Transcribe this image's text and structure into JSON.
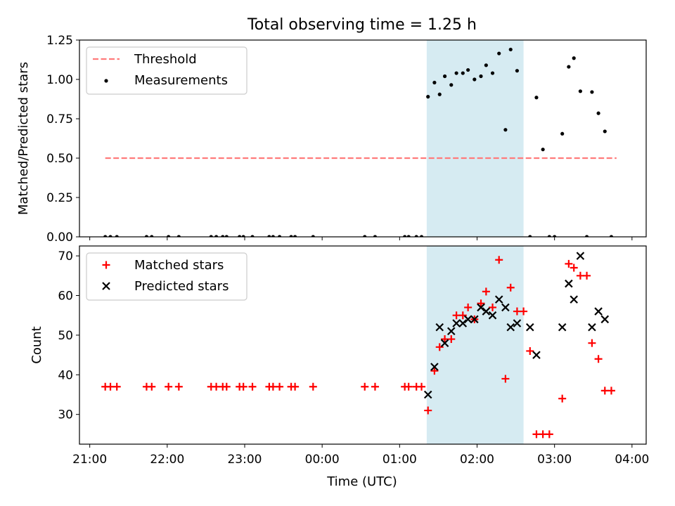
{
  "figure": {
    "title": "Total observing time = 1.25 h"
  },
  "colors": {
    "threshold": "#ff7b7b",
    "measurement": "#000000",
    "matched": "#ff0000",
    "predicted": "#000000",
    "observing_window": "#add8e6"
  },
  "chart_data": [
    {
      "type": "scatter",
      "title": "Total observing time = 1.25 h",
      "xlabel": "",
      "ylabel": "Matched/Predicted stars",
      "ylim": [
        0,
        1.25
      ],
      "yticks": [
        "0.00",
        "0.25",
        "0.50",
        "0.75",
        "1.00",
        "1.25"
      ],
      "xticks": [
        "21:00",
        "22:00",
        "23:00",
        "00:00",
        "01:00",
        "02:00",
        "03:00",
        "04:00"
      ],
      "shaded_interval": [
        "01:21",
        "02:36"
      ],
      "legend_position": "upper-left",
      "series": [
        {
          "name": "Threshold",
          "style": "dashed-line",
          "points": [
            [
              "21:12",
              0.5
            ],
            [
              "03:48",
              0.5
            ]
          ]
        },
        {
          "name": "Measurements",
          "style": "dots",
          "points": [
            [
              "21:12",
              0.0
            ],
            [
              "21:16",
              0.0
            ],
            [
              "21:21",
              0.0
            ],
            [
              "21:44",
              0.0
            ],
            [
              "21:48",
              0.0
            ],
            [
              "22:01",
              0.0
            ],
            [
              "22:09",
              0.0
            ],
            [
              "22:34",
              0.0
            ],
            [
              "22:38",
              0.0
            ],
            [
              "22:43",
              0.0
            ],
            [
              "22:46",
              0.0
            ],
            [
              "22:56",
              0.0
            ],
            [
              "22:59",
              0.0
            ],
            [
              "23:06",
              0.0
            ],
            [
              "23:19",
              0.0
            ],
            [
              "23:22",
              0.0
            ],
            [
              "23:27",
              0.0
            ],
            [
              "23:36",
              0.0
            ],
            [
              "23:39",
              0.0
            ],
            [
              "23:53",
              0.0
            ],
            [
              "00:33",
              0.0
            ],
            [
              "00:41",
              0.0
            ],
            [
              "01:04",
              0.0
            ],
            [
              "01:07",
              0.0
            ],
            [
              "01:13",
              0.0
            ],
            [
              "01:17",
              0.0
            ],
            [
              "01:22",
              0.89
            ],
            [
              "01:27",
              0.98
            ],
            [
              "01:31",
              0.905
            ],
            [
              "01:35",
              1.02
            ],
            [
              "01:40",
              0.965
            ],
            [
              "01:44",
              1.04
            ],
            [
              "01:49",
              1.04
            ],
            [
              "01:53",
              1.06
            ],
            [
              "01:58",
              1.0
            ],
            [
              "02:03",
              1.02
            ],
            [
              "02:07",
              1.09
            ],
            [
              "02:12",
              1.04
            ],
            [
              "02:17",
              1.165
            ],
            [
              "02:22",
              0.68
            ],
            [
              "02:26",
              1.19
            ],
            [
              "02:31",
              1.055
            ],
            [
              "02:41",
              0.0
            ],
            [
              "02:46",
              0.885
            ],
            [
              "02:51",
              0.555
            ],
            [
              "02:56",
              0.0
            ],
            [
              "03:00",
              0.0
            ],
            [
              "03:06",
              0.655
            ],
            [
              "03:11",
              1.08
            ],
            [
              "03:15",
              1.135
            ],
            [
              "03:20",
              0.925
            ],
            [
              "03:25",
              0.0
            ],
            [
              "03:29",
              0.92
            ],
            [
              "03:34",
              0.785
            ],
            [
              "03:39",
              0.67
            ],
            [
              "03:44",
              0.0
            ]
          ]
        }
      ]
    },
    {
      "type": "scatter",
      "title": "",
      "xlabel": "Time (UTC)",
      "ylabel": "Count",
      "ylim": [
        22.5,
        72.5
      ],
      "yticks": [
        "30",
        "40",
        "50",
        "60",
        "70"
      ],
      "xticks": [
        "21:00",
        "22:00",
        "23:00",
        "00:00",
        "01:00",
        "02:00",
        "03:00",
        "04:00"
      ],
      "shaded_interval": [
        "01:21",
        "02:36"
      ],
      "legend_position": "upper-left",
      "series": [
        {
          "name": "Matched stars",
          "marker": "plus",
          "points": [
            [
              "21:12",
              37
            ],
            [
              "21:16",
              37
            ],
            [
              "21:21",
              37
            ],
            [
              "21:44",
              37
            ],
            [
              "21:48",
              37
            ],
            [
              "22:01",
              37
            ],
            [
              "22:09",
              37
            ],
            [
              "22:34",
              37
            ],
            [
              "22:38",
              37
            ],
            [
              "22:43",
              37
            ],
            [
              "22:46",
              37
            ],
            [
              "22:56",
              37
            ],
            [
              "22:59",
              37
            ],
            [
              "23:06",
              37
            ],
            [
              "23:19",
              37
            ],
            [
              "23:22",
              37
            ],
            [
              "23:27",
              37
            ],
            [
              "23:36",
              37
            ],
            [
              "23:39",
              37
            ],
            [
              "23:53",
              37
            ],
            [
              "00:33",
              37
            ],
            [
              "00:41",
              37
            ],
            [
              "01:04",
              37
            ],
            [
              "01:07",
              37
            ],
            [
              "01:13",
              37
            ],
            [
              "01:17",
              37
            ],
            [
              "01:22",
              31
            ],
            [
              "01:27",
              41
            ],
            [
              "01:31",
              47
            ],
            [
              "01:35",
              49
            ],
            [
              "01:40",
              49
            ],
            [
              "01:44",
              55
            ],
            [
              "01:49",
              55
            ],
            [
              "01:53",
              57
            ],
            [
              "01:58",
              54
            ],
            [
              "02:03",
              58
            ],
            [
              "02:07",
              61
            ],
            [
              "02:12",
              57
            ],
            [
              "02:17",
              69
            ],
            [
              "02:22",
              39
            ],
            [
              "02:26",
              62
            ],
            [
              "02:31",
              56
            ],
            [
              "02:36",
              56
            ],
            [
              "02:41",
              46
            ],
            [
              "02:46",
              25
            ],
            [
              "02:51",
              25
            ],
            [
              "02:56",
              25
            ],
            [
              "03:06",
              34
            ],
            [
              "03:11",
              68
            ],
            [
              "03:15",
              67
            ],
            [
              "03:20",
              65
            ],
            [
              "03:25",
              65
            ],
            [
              "03:29",
              48
            ],
            [
              "03:34",
              44
            ],
            [
              "03:39",
              36
            ],
            [
              "03:44",
              36
            ]
          ]
        },
        {
          "name": "Predicted stars",
          "marker": "cross",
          "points": [
            [
              "01:22",
              35
            ],
            [
              "01:27",
              42
            ],
            [
              "01:31",
              52
            ],
            [
              "01:35",
              48
            ],
            [
              "01:40",
              51
            ],
            [
              "01:44",
              53
            ],
            [
              "01:49",
              53
            ],
            [
              "01:53",
              54
            ],
            [
              "01:58",
              54
            ],
            [
              "02:03",
              57
            ],
            [
              "02:07",
              56
            ],
            [
              "02:12",
              55
            ],
            [
              "02:17",
              59
            ],
            [
              "02:22",
              57
            ],
            [
              "02:26",
              52
            ],
            [
              "02:31",
              53
            ],
            [
              "02:41",
              52
            ],
            [
              "02:46",
              45
            ],
            [
              "03:06",
              52
            ],
            [
              "03:11",
              63
            ],
            [
              "03:15",
              59
            ],
            [
              "03:20",
              70
            ],
            [
              "03:29",
              52
            ],
            [
              "03:34",
              56
            ],
            [
              "03:39",
              54
            ]
          ]
        }
      ]
    }
  ]
}
